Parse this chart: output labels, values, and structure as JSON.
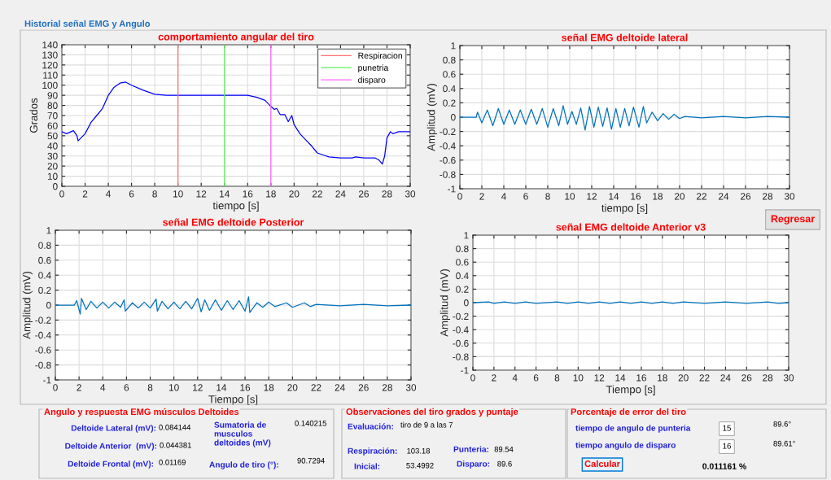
{
  "chart_data": [
    {
      "type": "other",
      "title": "Historial señal EMG y Angulo",
      "annotations": [
        "Regresar"
      ]
    },
    {
      "type": "line",
      "title": "comportamiento angular del tiro",
      "xlabel": "tiempo [s]",
      "ylabel": "Grados",
      "xlim": [
        0,
        30
      ],
      "ylim": [
        0,
        140
      ],
      "xticks": [
        0,
        2,
        4,
        6,
        8,
        10,
        12,
        14,
        16,
        18,
        20,
        22,
        24,
        26,
        28,
        30
      ],
      "yticks": [
        0,
        10,
        20,
        30,
        40,
        50,
        60,
        70,
        80,
        90,
        100,
        110,
        120,
        130,
        140
      ],
      "grid": true,
      "legend": "top right",
      "marker": "none",
      "line_style": "solid",
      "series": [
        {
          "color": "#0000ff",
          "x": [
            0,
            0.4,
            1.0,
            1.3,
            1.4,
            2,
            2.5,
            3,
            3.5,
            4,
            4.5,
            5,
            5.5,
            6,
            7,
            8,
            9,
            10,
            12,
            14,
            16,
            16.8,
            17.5,
            18,
            18.3,
            18.5,
            18.8,
            19.2,
            19.5,
            19.8,
            20,
            20.5,
            21,
            21.5,
            22,
            22.5,
            23,
            24,
            25,
            25.3,
            26,
            27,
            27.3,
            27.6,
            27.8,
            28,
            28.3,
            28.5,
            29,
            30
          ],
          "values": [
            54,
            52,
            55,
            50,
            45,
            52,
            63,
            70,
            77,
            90,
            98,
            102,
            103,
            100,
            95,
            91,
            90,
            90,
            90,
            90,
            90,
            88,
            85,
            79,
            76,
            77,
            71,
            71,
            64,
            70,
            61,
            52,
            46,
            40,
            33,
            31,
            29,
            28,
            28,
            29,
            28,
            28,
            26,
            22,
            30,
            48,
            54,
            52,
            54,
            54
          ]
        },
        {
          "name": "Respiracion",
          "color": "#ff7070",
          "x": [
            10,
            10
          ],
          "values": [
            0,
            140
          ]
        },
        {
          "name": "punetria",
          "color": "#5ef05e",
          "x": [
            14,
            14
          ],
          "values": [
            0,
            140
          ]
        },
        {
          "name": "disparo",
          "color": "#ff66ff",
          "x": [
            18,
            18
          ],
          "values": [
            0,
            140
          ]
        }
      ]
    },
    {
      "type": "line",
      "title": "señal EMG deltoide lateral",
      "xlabel": "tiempo [s]",
      "ylabel": "Amplitud (mV)",
      "xlim": [
        0,
        30
      ],
      "ylim": [
        -1,
        1
      ],
      "xticks": [
        0,
        2,
        4,
        6,
        8,
        10,
        12,
        14,
        16,
        18,
        20,
        22,
        24,
        26,
        28,
        30
      ],
      "yticks": [
        -1,
        -0.8,
        -0.6,
        -0.4,
        -0.2,
        0,
        0.2,
        0.4,
        0.6,
        0.8,
        1
      ],
      "grid": true,
      "marker": "none",
      "line_style": "solid",
      "series": [
        {
          "color": "#0072bd",
          "x": [
            0,
            1.5,
            1.6,
            2,
            2.5,
            3,
            3.5,
            4,
            4.5,
            5,
            5.5,
            6,
            6.5,
            7,
            7.5,
            8,
            8.5,
            9,
            9.4,
            9.8,
            10.2,
            10.6,
            11,
            11.4,
            11.8,
            12.2,
            12.6,
            13,
            13.4,
            13.8,
            14.2,
            14.6,
            15,
            15.4,
            15.8,
            16.3,
            16.7,
            17,
            17.5,
            18,
            18.5,
            19,
            19.5,
            20,
            20.5,
            22,
            24,
            26,
            28,
            30
          ],
          "values": [
            0,
            0,
            0.07,
            -0.08,
            0.1,
            -0.12,
            0.12,
            -0.1,
            0.1,
            -0.1,
            0.1,
            -0.1,
            0.11,
            -0.1,
            0.12,
            -0.14,
            0.12,
            -0.12,
            0.16,
            -0.1,
            0.08,
            -0.1,
            0.13,
            -0.18,
            0.15,
            -0.14,
            0.14,
            -0.13,
            0.13,
            -0.17,
            0.12,
            -0.14,
            0.12,
            -0.12,
            0.14,
            -0.14,
            0.15,
            -0.08,
            0.07,
            -0.05,
            0.05,
            -0.03,
            0.04,
            -0.02,
            0.01,
            -0.01,
            0.01,
            -0.01,
            0.01,
            0
          ]
        }
      ]
    },
    {
      "type": "line",
      "title": "señal EMG deltoide Posterior",
      "xlabel": "Tiempo [s]",
      "ylabel": "Amplitud (mV)",
      "xlim": [
        0,
        30
      ],
      "ylim": [
        -1,
        1
      ],
      "xticks": [
        0,
        2,
        4,
        6,
        8,
        10,
        12,
        14,
        16,
        18,
        20,
        22,
        24,
        26,
        28,
        30
      ],
      "yticks": [
        -1,
        -0.8,
        -0.6,
        -0.4,
        -0.2,
        0,
        0.2,
        0.4,
        0.6,
        0.8,
        1
      ],
      "grid": true,
      "marker": "none",
      "line_style": "solid",
      "series": [
        {
          "color": "#0072bd",
          "x": [
            0,
            1.6,
            1.8,
            2.1,
            2.2,
            2.6,
            3,
            3.5,
            4,
            4.5,
            5,
            5.5,
            5.8,
            5.9,
            6.5,
            7,
            7.5,
            8,
            8.5,
            8.6,
            9,
            9.5,
            10,
            10.5,
            11,
            11.5,
            12,
            12.3,
            12.6,
            13,
            13.5,
            14,
            14.5,
            15,
            15.5,
            16,
            16.3,
            16.4,
            17,
            17.5,
            18,
            18.5,
            19.5,
            20,
            21,
            21.5,
            22,
            24,
            26,
            28,
            30
          ],
          "values": [
            0,
            0,
            0.06,
            -0.12,
            0.09,
            -0.06,
            0.05,
            -0.04,
            0.04,
            -0.04,
            0.04,
            -0.03,
            0.07,
            -0.08,
            0.03,
            -0.04,
            0.04,
            -0.04,
            0.08,
            -0.08,
            0.05,
            -0.05,
            0.04,
            -0.05,
            0.05,
            -0.05,
            0.09,
            -0.09,
            0.07,
            -0.07,
            0.07,
            -0.07,
            0.06,
            -0.06,
            0.06,
            -0.08,
            0.11,
            -0.1,
            0.03,
            -0.03,
            0.04,
            -0.02,
            0.03,
            -0.03,
            0.03,
            -0.02,
            0.01,
            -0.01,
            0.01,
            -0.01,
            0
          ]
        }
      ]
    },
    {
      "type": "line",
      "title": "señal EMG deltoide Anterior v3",
      "xlabel": "Tiempo [s]",
      "ylabel": "Amplitud (mV)",
      "xlim": [
        0,
        30
      ],
      "ylim": [
        -1,
        1
      ],
      "xticks": [
        0,
        2,
        4,
        6,
        8,
        10,
        12,
        14,
        16,
        18,
        20,
        22,
        24,
        26,
        28,
        30
      ],
      "yticks": [
        -1,
        -0.8,
        -0.6,
        -0.4,
        -0.2,
        0,
        0.2,
        0.4,
        0.6,
        0.8,
        1
      ],
      "grid": true,
      "marker": "none",
      "line_style": "solid",
      "series": [
        {
          "color": "#0072bd",
          "x": [
            0,
            1.5,
            2,
            3,
            4,
            5,
            6,
            8,
            9,
            10,
            11,
            12,
            13,
            14,
            15,
            16,
            17,
            18,
            19,
            20,
            22,
            24,
            26,
            28,
            29,
            30
          ],
          "values": [
            0,
            0.01,
            -0.01,
            0.01,
            -0.01,
            0.01,
            -0.01,
            0.01,
            -0.01,
            0.01,
            -0.01,
            0.01,
            -0.01,
            0.01,
            -0.01,
            0.01,
            -0.01,
            0.01,
            -0.01,
            0.01,
            -0.01,
            0.01,
            -0.01,
            0.01,
            -0.01,
            0
          ]
        }
      ]
    },
    {
      "type": "other",
      "title": "Angulo y respuesta EMG músculos Deltoides",
      "annotations": [
        "Deltoide Lateral (mV):",
        "0.084144",
        "Deltoide Anterior  (mV):",
        "0.044381",
        "Deltoide Frontal (mV):",
        "0.01169",
        "Sumatoria de\nmusculos\ndeltoides (mV)",
        "0.140215",
        "Angulo de tiro (°):",
        "90.7294"
      ]
    },
    {
      "type": "other",
      "title": "Observaciones del tiro grados y puntaje",
      "annotations": [
        "Evaluación:",
        "tiro de 9 a las 7",
        "Respiración:",
        "103.18",
        "Inicial:",
        "53.4992",
        "Punteria:",
        "89.54",
        "Disparo:",
        "89.6"
      ]
    },
    {
      "type": "other",
      "title": "Porcentaje de error del tiro",
      "annotations": [
        "tiempo de angulo de punteria",
        "15",
        "89.6°",
        "tiempo angulo de disparo",
        "16",
        "89.61°",
        "Calcular",
        "0.011161 %"
      ]
    }
  ]
}
